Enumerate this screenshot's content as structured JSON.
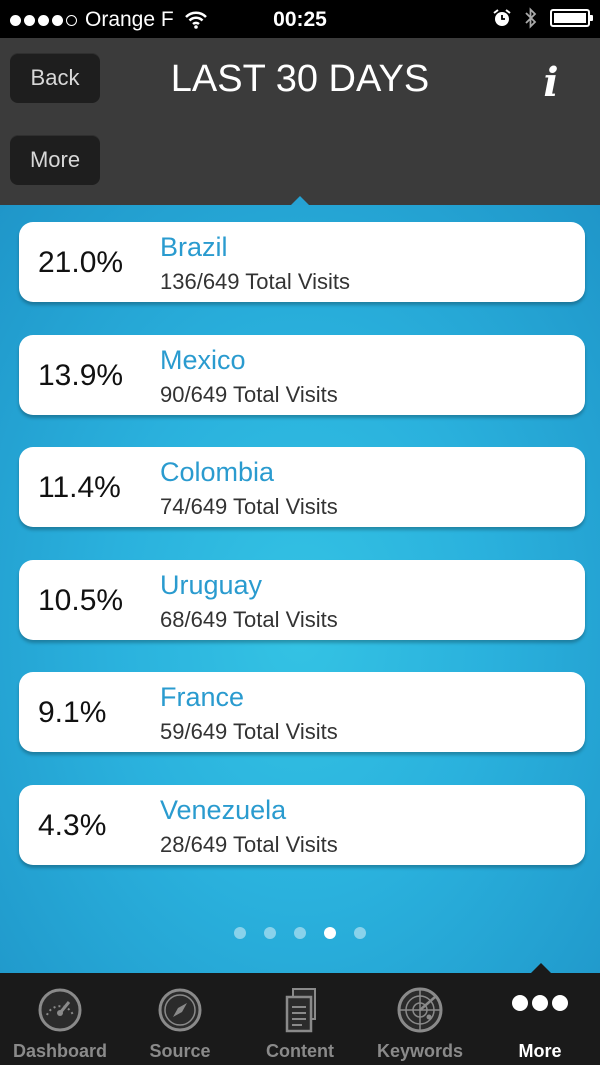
{
  "status_bar": {
    "carrier": "Orange F",
    "time": "00:25"
  },
  "header": {
    "title": "LAST 30 DAYS",
    "back_label": "Back",
    "more_label": "More"
  },
  "countries": [
    {
      "percent": "21.0%",
      "name": "Brazil",
      "visits": "136/649 Total Visits"
    },
    {
      "percent": "13.9%",
      "name": "Mexico",
      "visits": "90/649 Total Visits"
    },
    {
      "percent": "11.4%",
      "name": "Colombia",
      "visits": "74/649 Total Visits"
    },
    {
      "percent": "10.5%",
      "name": "Uruguay",
      "visits": "68/649 Total Visits"
    },
    {
      "percent": "9.1%",
      "name": "France",
      "visits": "59/649 Total Visits"
    },
    {
      "percent": "4.3%",
      "name": "Venezuela",
      "visits": "28/649 Total Visits"
    }
  ],
  "pager": {
    "pages": 5,
    "active_index": 3
  },
  "tabs": [
    {
      "label": "Dashboard",
      "icon": "speedometer-icon"
    },
    {
      "label": "Source",
      "icon": "compass-icon"
    },
    {
      "label": "Content",
      "icon": "documents-icon"
    },
    {
      "label": "Keywords",
      "icon": "radar-icon"
    },
    {
      "label": "More",
      "icon": "more-dots-icon"
    }
  ],
  "colors": {
    "accent_blue": "#2a9bcf",
    "background_blue": "#2aa6d6",
    "header_dark": "#3b3b3b"
  }
}
